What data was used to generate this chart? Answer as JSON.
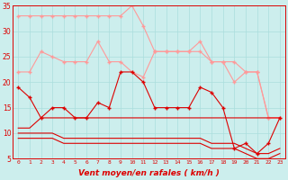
{
  "xlabel": "Vent moyen/en rafales ( km/h )",
  "x": [
    0,
    1,
    2,
    3,
    4,
    5,
    6,
    7,
    8,
    9,
    10,
    11,
    12,
    13,
    14,
    15,
    16,
    17,
    18,
    19,
    20,
    21,
    22,
    23
  ],
  "line1": [
    33,
    33,
    33,
    33,
    33,
    33,
    33,
    33,
    33,
    33,
    35,
    31,
    26,
    26,
    26,
    26,
    26,
    24,
    24,
    24,
    22,
    22,
    13,
    13
  ],
  "line2": [
    22,
    22,
    26,
    25,
    24,
    24,
    24,
    28,
    24,
    24,
    22,
    21,
    26,
    26,
    26,
    26,
    28,
    24,
    24,
    20,
    22,
    22,
    13,
    13
  ],
  "line3": [
    19,
    17,
    13,
    15,
    15,
    13,
    13,
    16,
    15,
    22,
    22,
    20,
    15,
    15,
    15,
    15,
    19,
    18,
    15,
    7,
    8,
    6,
    8,
    13
  ],
  "line4": [
    11,
    11,
    13,
    13,
    13,
    13,
    13,
    13,
    13,
    13,
    13,
    13,
    13,
    13,
    13,
    13,
    13,
    13,
    13,
    13,
    13,
    13,
    13,
    13
  ],
  "line5": [
    10,
    10,
    10,
    10,
    9,
    9,
    9,
    9,
    9,
    9,
    9,
    9,
    9,
    9,
    9,
    9,
    9,
    8,
    8,
    8,
    7,
    6,
    6,
    7
  ],
  "line6": [
    9,
    9,
    9,
    9,
    8,
    8,
    8,
    8,
    8,
    8,
    8,
    8,
    8,
    8,
    8,
    8,
    8,
    7,
    7,
    7,
    6,
    5,
    5,
    6
  ],
  "line7": [
    5,
    5,
    5,
    5,
    5,
    5,
    5,
    5,
    5,
    5,
    5,
    5,
    5,
    5,
    5,
    5,
    5,
    5,
    5,
    5,
    5,
    5,
    5,
    5
  ],
  "ylim": [
    5,
    35
  ],
  "yticks": [
    5,
    10,
    15,
    20,
    25,
    30,
    35
  ],
  "bg_color": "#cceeed",
  "grid_color": "#aadddd",
  "color_light": "#ff9999",
  "color_medium": "#ee6666",
  "color_dark": "#dd0000",
  "marker": "+"
}
